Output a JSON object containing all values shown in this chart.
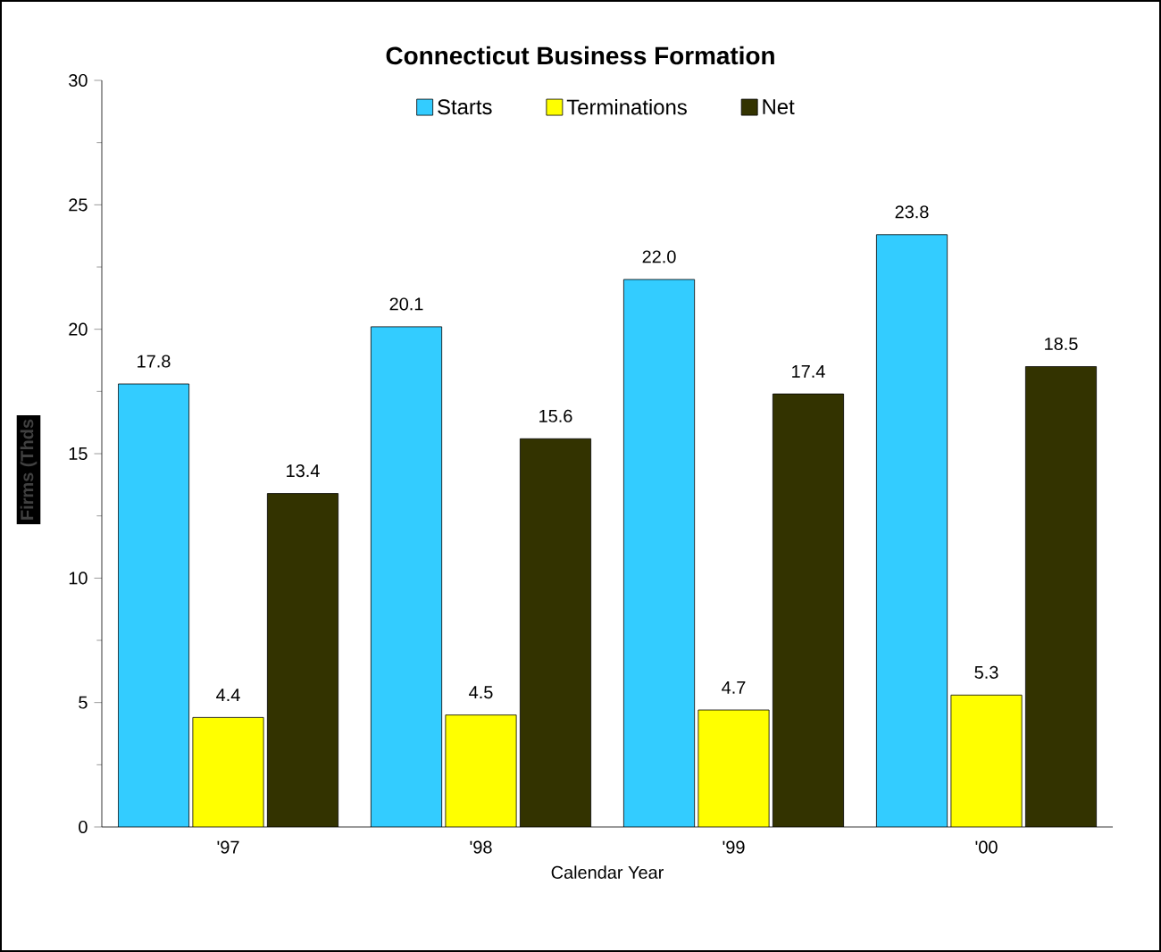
{
  "chart_data": {
    "type": "bar",
    "title": "Connecticut Business Formation",
    "xlabel": "Calendar Year",
    "ylabel": "Firms (Thds",
    "categories": [
      "'97",
      "'98",
      "'99",
      "'00"
    ],
    "series": [
      {
        "name": "Starts",
        "color": "#33ccff",
        "values": [
          17.8,
          20.1,
          22.0,
          23.8
        ],
        "value_labels": [
          "17.8",
          "20.1",
          "22.0",
          "23.8"
        ]
      },
      {
        "name": "Terminations",
        "color": "#ffff00",
        "values": [
          4.4,
          4.5,
          4.7,
          5.3
        ],
        "value_labels": [
          "4.4",
          "4.5",
          "4.7",
          "5.3"
        ]
      },
      {
        "name": "Net",
        "color": "#333300",
        "values": [
          13.4,
          15.6,
          17.4,
          18.5
        ],
        "value_labels": [
          "13.4",
          "15.6",
          "17.4",
          "18.5"
        ]
      }
    ],
    "ylim": [
      0,
      30
    ],
    "yticks": [
      0,
      5,
      10,
      15,
      20,
      25,
      30
    ],
    "legend": "top"
  }
}
